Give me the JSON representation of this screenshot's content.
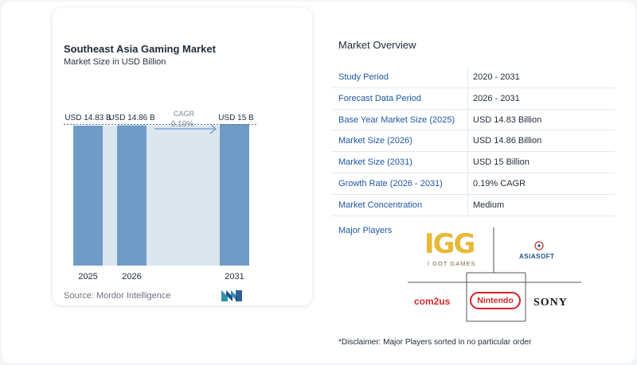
{
  "chart": {
    "title": "Southeast Asia Gaming Market",
    "subtitle": "Market Size in USD Billion",
    "source": "Source:  Mordor Intelligence",
    "cagr_label": "CAGR",
    "cagr_value": "0.19%"
  },
  "chart_data": {
    "type": "bar",
    "title": "Southeast Asia Gaming Market",
    "subtitle": "Market Size in USD Billion",
    "categories": [
      "2025",
      "2026",
      "2031"
    ],
    "values": [
      14.83,
      14.86,
      15
    ],
    "data_labels": [
      "USD 14.83 B",
      "USD 14.86 B",
      "USD 15 B"
    ],
    "ylabel": "",
    "xlabel": "",
    "ylim": [
      0,
      15
    ],
    "grid": false,
    "annotation": "CAGR 0.19%",
    "colors": {
      "bar": "#6f9bc6",
      "connector": "#dbe6ef",
      "arrow": "#6f9bc6",
      "reference_line": "#4a6a8a"
    }
  },
  "overview": {
    "title": "Market Overview",
    "rows": [
      {
        "label": "Study Period",
        "value": "2020 - 2031"
      },
      {
        "label": "Forecast Data Period",
        "value": "2026 - 2031"
      },
      {
        "label": "Base Year Market Size (2025)",
        "value": "USD 14.83 Billion"
      },
      {
        "label": "Market Size (2026)",
        "value": "USD 14.86 Billion"
      },
      {
        "label": "Market Size (2031)",
        "value": "USD 15 Billion"
      },
      {
        "label": "Growth Rate (2026 - 2031)",
        "value": "0.19% CAGR"
      },
      {
        "label": "Market Concentration",
        "value": "Medium"
      }
    ]
  },
  "players": {
    "label": "Major Players",
    "logos": {
      "igg": "IGG",
      "igg_sub": "I GOT GAMES",
      "asiasoft": "ASIASOFT",
      "com2us": "com2us",
      "nintendo": "Nintendo",
      "sony": "SONY"
    }
  },
  "disclaimer": "*Disclaimer: Major Players sorted in no particular order",
  "colors": {
    "label_blue": "#1f57a3",
    "row_border": "#e5e8ec",
    "brand_teal": "#2f8fa8",
    "brand_blue": "#1b4e8c"
  }
}
